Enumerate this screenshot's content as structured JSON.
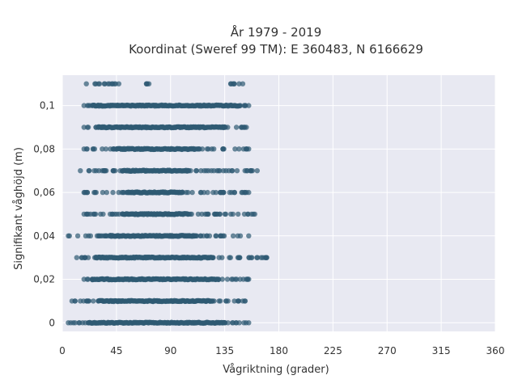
{
  "chart_data": {
    "type": "scatter",
    "title": "År 1979 - 2019",
    "subtitle": "Koordinat (Sweref 99 TM): E 360483, N 6166629",
    "xlabel": "Vågriktning (grader)",
    "ylabel": "Signifikant våghöjd (m)",
    "xlim": [
      0,
      360
    ],
    "ylim": [
      -0.004,
      0.114
    ],
    "x_ticks": [
      0,
      45,
      90,
      135,
      180,
      225,
      270,
      315,
      360
    ],
    "y_ticks": [
      0,
      0.02,
      0.04,
      0.06,
      0.08,
      0.1
    ],
    "y_tick_labels": [
      "0",
      "0,02",
      "0,04",
      "0,06",
      "0,08",
      "0,1"
    ],
    "grid": true,
    "marker_color": "#2f5a73",
    "background_color": "#e8e9f2",
    "bands": [
      {
        "y": 0.0,
        "dense": [
          22,
          135
        ],
        "sparse": [
          [
            5,
            22
          ],
          [
            135,
            155
          ]
        ]
      },
      {
        "y": 0.01,
        "dense": [
          30,
          125
        ],
        "sparse": [
          [
            8,
            30
          ],
          [
            125,
            152
          ]
        ]
      },
      {
        "y": 0.02,
        "dense": [
          25,
          130
        ],
        "sparse": [
          [
            18,
            25
          ],
          [
            130,
            155
          ]
        ]
      },
      {
        "y": 0.03,
        "dense": [
          28,
          125
        ],
        "sparse": [
          [
            12,
            28
          ],
          [
            125,
            170
          ]
        ]
      },
      {
        "y": 0.04,
        "dense": [
          40,
          110
        ],
        "sparse": [
          [
            5,
            40
          ],
          [
            110,
            155
          ]
        ]
      },
      {
        "y": 0.05,
        "dense": [
          50,
          105
        ],
        "sparse": [
          [
            18,
            50
          ],
          [
            105,
            160
          ]
        ]
      },
      {
        "y": 0.06,
        "dense": [
          55,
          100
        ],
        "sparse": [
          [
            18,
            55
          ],
          [
            100,
            155
          ]
        ]
      },
      {
        "y": 0.07,
        "dense": [
          50,
          105
        ],
        "sparse": [
          [
            15,
            50
          ],
          [
            105,
            162
          ]
        ]
      },
      {
        "y": 0.08,
        "dense": [
          45,
          110
        ],
        "sparse": [
          [
            18,
            45
          ],
          [
            110,
            155
          ]
        ]
      },
      {
        "y": 0.09,
        "dense": [
          30,
          135
        ],
        "sparse": [
          [
            18,
            30
          ],
          [
            135,
            153
          ]
        ]
      },
      {
        "y": 0.1,
        "dense": [
          25,
          148
        ],
        "sparse": [
          [
            18,
            25
          ],
          [
            148,
            155
          ]
        ]
      },
      {
        "y": 0.11,
        "dense": [],
        "sparse": [
          [
            20,
            47
          ],
          [
            70,
            72
          ],
          [
            140,
            150
          ]
        ]
      }
    ]
  }
}
